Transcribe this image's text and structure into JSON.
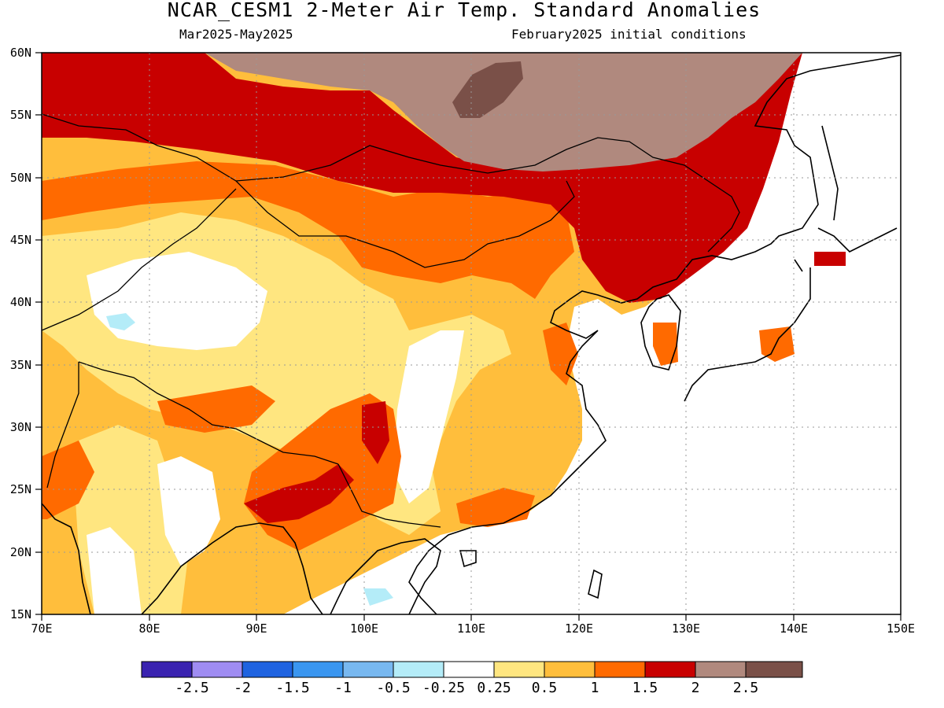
{
  "title": "NCAR_CESM1 2-Meter Air Temp. Standard Anomalies",
  "subtitle_left": "Mar2025-May2025",
  "subtitle_right": "February2025 initial conditions",
  "lat_labels": [
    "60N",
    "55N",
    "50N",
    "45N",
    "40N",
    "35N",
    "30N",
    "25N",
    "20N",
    "15N"
  ],
  "lon_labels": [
    "70E",
    "80E",
    "90E",
    "100E",
    "110E",
    "120E",
    "130E",
    "140E",
    "150E"
  ],
  "colorbar": {
    "colors": [
      "#3a23b0",
      "#9f8cf2",
      "#1f63e0",
      "#3a96f0",
      "#78b8f0",
      "#b4ecf8",
      "#ffffff",
      "#ffe680",
      "#ffbe3c",
      "#ff6a00",
      "#c80000",
      "#b0897e",
      "#7a5048"
    ],
    "labels": [
      "-2.5",
      "-2",
      "-1.5",
      "-1",
      "-0.5",
      "-0.25",
      "0.25",
      "0.5",
      "1",
      "1.5",
      "2",
      "2.5"
    ]
  },
  "map_colors": {
    "c_0_25": "#ffffff",
    "c_0_5": "#ffe680",
    "c_1": "#ffbe3c",
    "c_1_5": "#ff6a00",
    "c_2": "#c80000",
    "c_2_5": "#b0897e",
    "c_3": "#7a5048",
    "c_neg_0_5": "#b4ecf8",
    "coast": "#000000"
  }
}
